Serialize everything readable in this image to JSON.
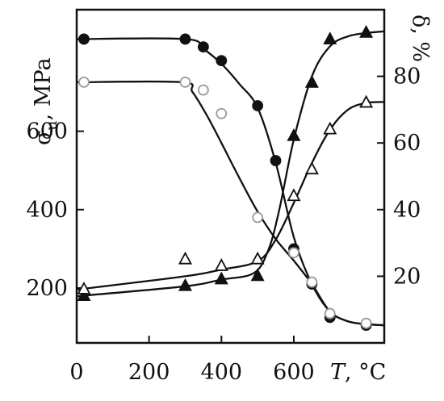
{
  "chart_data": {
    "type": "line",
    "x_axis": {
      "range": [
        0,
        850
      ],
      "ticks": [
        0,
        200,
        400,
        600
      ],
      "tick_labels": [
        "0",
        "200",
        "400",
        "600"
      ],
      "label": "T, °C",
      "label_symbol": "T",
      "label_unit": ", °C"
    },
    "y_left": {
      "range": [
        60,
        910
      ],
      "ticks": [
        200,
        400,
        600
      ],
      "tick_labels": [
        "200",
        "400",
        "600"
      ],
      "label": "σu, MPa",
      "label_symbol": "σ",
      "label_subscript": "u",
      "label_unit": ", MPa"
    },
    "y_right": {
      "range": [
        0,
        100
      ],
      "ticks": [
        20,
        40,
        60,
        80
      ],
      "tick_labels": [
        "20",
        "40",
        "60",
        "80"
      ],
      "label": "δ, %"
    },
    "series": [
      {
        "axis": "left",
        "marker": "circle-filled",
        "points": [
          [
            20,
            835
          ],
          [
            300,
            835
          ],
          [
            350,
            815
          ],
          [
            400,
            780
          ],
          [
            500,
            665
          ],
          [
            550,
            525
          ],
          [
            600,
            300
          ],
          [
            650,
            210
          ],
          [
            700,
            125
          ],
          [
            800,
            105
          ]
        ],
        "curve": [
          [
            0,
            835
          ],
          [
            300,
            835
          ],
          [
            350,
            810
          ],
          [
            400,
            772
          ],
          [
            450,
            720
          ],
          [
            500,
            660
          ],
          [
            550,
            520
          ],
          [
            600,
            330
          ],
          [
            650,
            210
          ],
          [
            700,
            140
          ],
          [
            750,
            115
          ],
          [
            800,
            108
          ],
          [
            850,
            105
          ]
        ]
      },
      {
        "axis": "left",
        "marker": "circle-open",
        "points": [
          [
            20,
            725
          ],
          [
            300,
            725
          ],
          [
            350,
            705
          ],
          [
            400,
            645
          ],
          [
            500,
            380
          ],
          [
            600,
            290
          ],
          [
            650,
            215
          ],
          [
            700,
            135
          ],
          [
            800,
            110
          ]
        ],
        "curve": [
          [
            0,
            725
          ],
          [
            290,
            725
          ],
          [
            320,
            700
          ],
          [
            360,
            640
          ],
          [
            400,
            570
          ],
          [
            450,
            480
          ],
          [
            500,
            395
          ],
          [
            550,
            325
          ],
          [
            600,
            270
          ],
          [
            650,
            210
          ],
          [
            700,
            140
          ],
          [
            750,
            115
          ],
          [
            800,
            108
          ],
          [
            850,
            105
          ]
        ]
      },
      {
        "axis": "right",
        "marker": "triangle-filled",
        "points": [
          [
            20,
            14
          ],
          [
            300,
            17
          ],
          [
            400,
            19
          ],
          [
            500,
            20
          ],
          [
            600,
            62
          ],
          [
            650,
            78
          ],
          [
            700,
            91
          ],
          [
            800,
            93
          ]
        ],
        "curve": [
          [
            0,
            14
          ],
          [
            300,
            17
          ],
          [
            400,
            19
          ],
          [
            490,
            21
          ],
          [
            530,
            28
          ],
          [
            560,
            40
          ],
          [
            600,
            61
          ],
          [
            650,
            80
          ],
          [
            700,
            89
          ],
          [
            750,
            92
          ],
          [
            800,
            93
          ],
          [
            850,
            93.5
          ]
        ]
      },
      {
        "axis": "right",
        "marker": "triangle-open",
        "points": [
          [
            20,
            16
          ],
          [
            300,
            25
          ],
          [
            400,
            23
          ],
          [
            500,
            25
          ],
          [
            600,
            44
          ],
          [
            650,
            52
          ],
          [
            700,
            64
          ],
          [
            800,
            72
          ]
        ],
        "curve": [
          [
            0,
            16
          ],
          [
            300,
            20
          ],
          [
            400,
            22
          ],
          [
            500,
            24.5
          ],
          [
            550,
            31
          ],
          [
            600,
            42
          ],
          [
            650,
            54
          ],
          [
            700,
            64
          ],
          [
            750,
            70
          ],
          [
            800,
            72
          ],
          [
            850,
            72.3
          ]
        ]
      }
    ]
  }
}
